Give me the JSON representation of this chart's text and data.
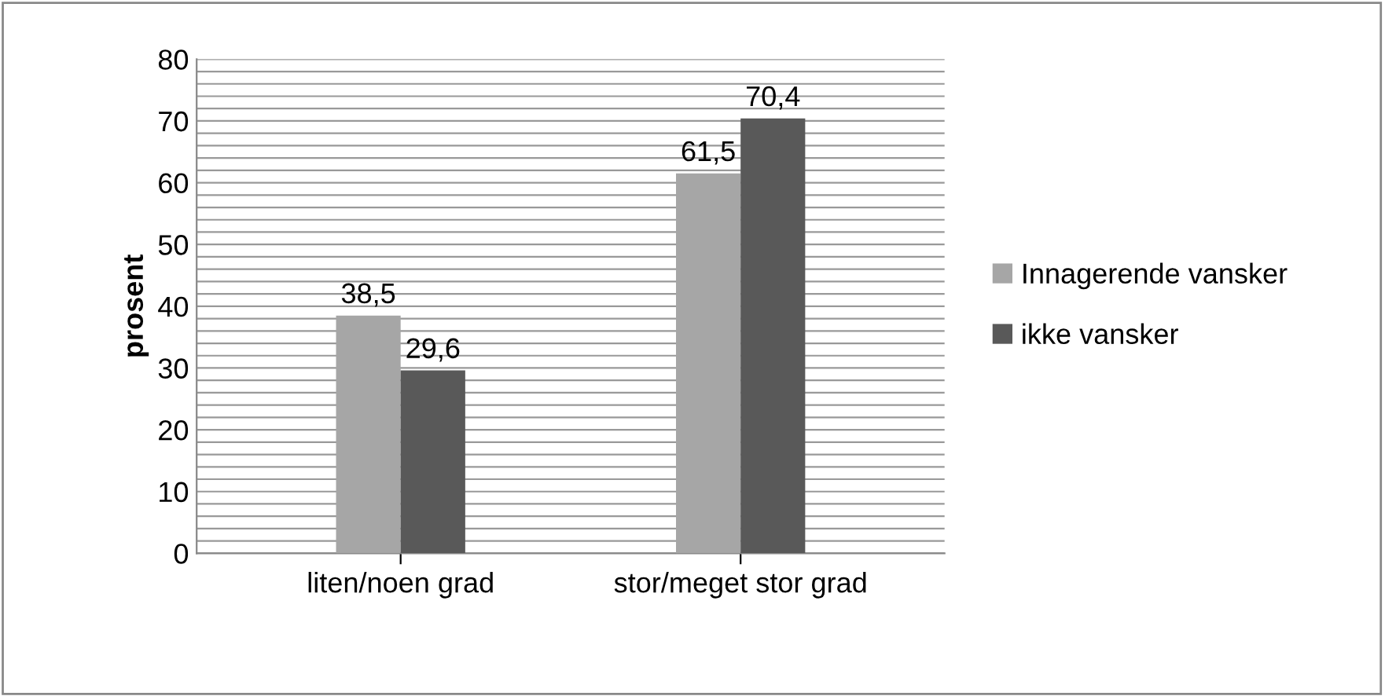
{
  "chart_data": {
    "type": "bar",
    "ylabel": "prosent",
    "categories": [
      "liten/noen grad",
      "stor/meget stor grad"
    ],
    "series": [
      {
        "name": "Innagerende vansker",
        "color": "#a6a6a6",
        "values": [
          38.5,
          61.5
        ],
        "value_labels": [
          "38,5",
          "61,5"
        ]
      },
      {
        "name": "ikke vansker",
        "color": "#595959",
        "values": [
          29.6,
          70.4
        ],
        "value_labels": [
          "29,6",
          "70,4"
        ]
      }
    ],
    "ylim": [
      0,
      80
    ],
    "yticks": [
      0,
      {
        "value": 2,
        "label": null
      },
      {
        "value": 4,
        "label": null
      },
      {
        "value": 6,
        "label": null
      },
      {
        "value": 8,
        "label": null
      },
      10,
      {
        "value": 12,
        "label": null
      },
      {
        "value": 14,
        "label": null
      },
      {
        "value": 16,
        "label": null
      },
      {
        "value": 18,
        "label": null
      },
      20,
      {
        "value": 22,
        "label": null
      },
      {
        "value": 24,
        "label": null
      },
      {
        "value": 26,
        "label": null
      },
      {
        "value": 28,
        "label": null
      },
      30,
      {
        "value": 32,
        "label": null
      },
      {
        "value": 34,
        "label": null
      },
      {
        "value": 36,
        "label": null
      },
      {
        "value": 38,
        "label": null
      },
      40,
      {
        "value": 42,
        "label": null
      },
      {
        "value": 44,
        "label": null
      },
      {
        "value": 46,
        "label": null
      },
      {
        "value": 48,
        "label": null
      },
      50,
      {
        "value": 52,
        "label": null
      },
      {
        "value": 54,
        "label": null
      },
      {
        "value": 56,
        "label": null
      },
      {
        "value": 58,
        "label": null
      },
      60,
      {
        "value": 62,
        "label": null
      },
      {
        "value": 64,
        "label": null
      },
      {
        "value": 66,
        "label": null
      },
      {
        "value": 68,
        "label": null
      },
      70,
      {
        "value": 72,
        "label": null
      },
      {
        "value": 74,
        "label": null
      },
      {
        "value": 76,
        "label": null
      },
      {
        "value": 78,
        "label": null
      },
      80
    ],
    "grid": "y",
    "legend": "right"
  }
}
